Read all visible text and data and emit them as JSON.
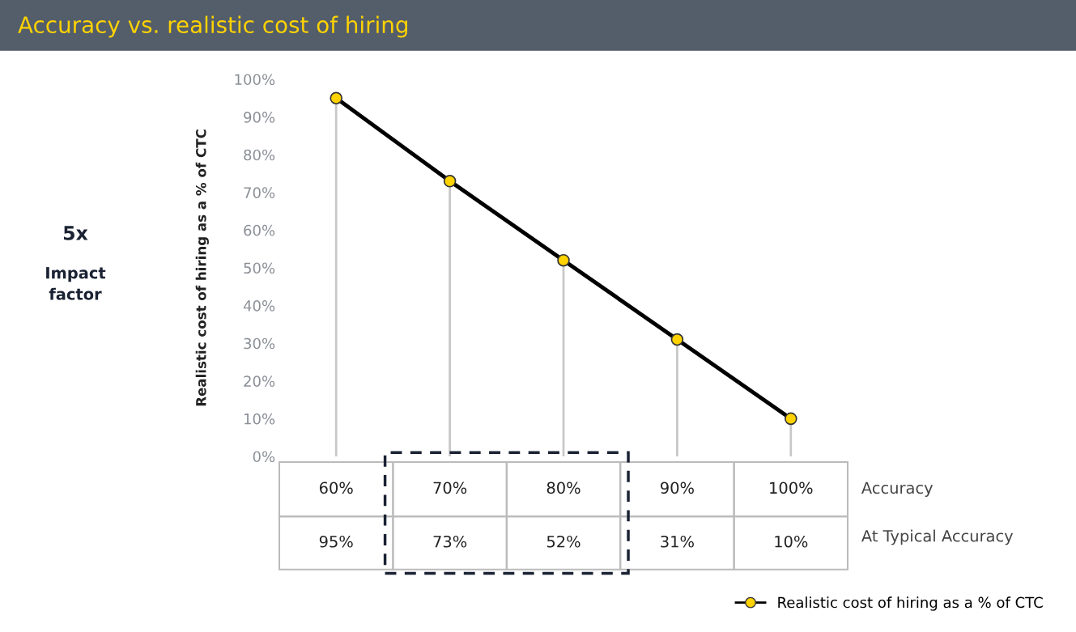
{
  "chart_data": {
    "type": "line",
    "title": "Accuracy vs. realistic cost of hiring",
    "categories": [
      "60%",
      "70%",
      "80%",
      "90%",
      "100%"
    ],
    "series": [
      {
        "name": "Realistic cost of hiring as a % of CTC",
        "type": "lollipop",
        "color": "#ffd200",
        "values": [
          95,
          73,
          52,
          31,
          10
        ],
        "value_labels": [
          "95%",
          "73%",
          "52%",
          "31%",
          "10%"
        ]
      },
      {
        "type": "line",
        "color": "#000000",
        "marker": "none",
        "values": [
          95,
          73,
          52,
          31,
          10
        ]
      }
    ],
    "xlabel": "Accuracy",
    "ylabel": "Realistic cost of hiring as a % of CTC",
    "ylim": [
      0,
      100
    ],
    "yticks": [
      {
        "value": 0,
        "label": "0%"
      },
      {
        "value": 10,
        "label": "10%"
      },
      {
        "value": 20,
        "label": "20%"
      },
      {
        "value": 30,
        "label": "30%"
      },
      {
        "value": 40,
        "label": "40%"
      },
      {
        "value": 50,
        "label": "50%"
      },
      {
        "value": 60,
        "label": "60%"
      },
      {
        "value": 70,
        "label": "70%"
      },
      {
        "value": 80,
        "label": "80%"
      },
      {
        "value": 90,
        "label": "90%"
      },
      {
        "value": 100,
        "label": "100%"
      }
    ],
    "annotations": [
      "5x",
      "Impact factor",
      "At Typical Accuracy"
    ],
    "marker": "circle",
    "line_style": "solid",
    "legend": "bottom right"
  }
}
